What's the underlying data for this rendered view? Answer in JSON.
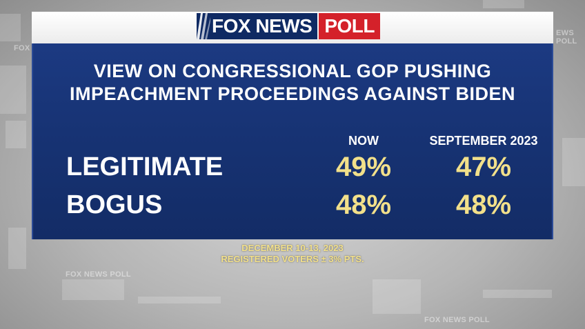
{
  "brand": {
    "logo_fox_news": "FOX NEWS",
    "logo_poll": "POLL",
    "colors": {
      "navy": "#0f2a63",
      "red": "#d4212a",
      "panel": "#173374",
      "value_yellow": "#f2e08a"
    }
  },
  "poll": {
    "title_line1": "VIEW ON CONGRESSIONAL GOP PUSHING",
    "title_line2": "IMPEACHMENT PROCEEDINGS AGAINST BIDEN",
    "columns": [
      "NOW",
      "SEPTEMBER 2023"
    ],
    "rows": [
      {
        "label": "LEGITIMATE",
        "now": "49%",
        "september_2023": "47%"
      },
      {
        "label": "BOGUS",
        "now": "48%",
        "september_2023": "48%"
      }
    ]
  },
  "footer": {
    "dates": "DECEMBER 10-13, 2023",
    "sample": "REGISTERED VOTERS ± 3% PTS."
  },
  "background": {
    "watermark_texts": [
      "FOX NEWS POLL",
      "FOX NEWS POLL",
      "FOX NEWS POLL",
      "EWS POLL"
    ]
  }
}
